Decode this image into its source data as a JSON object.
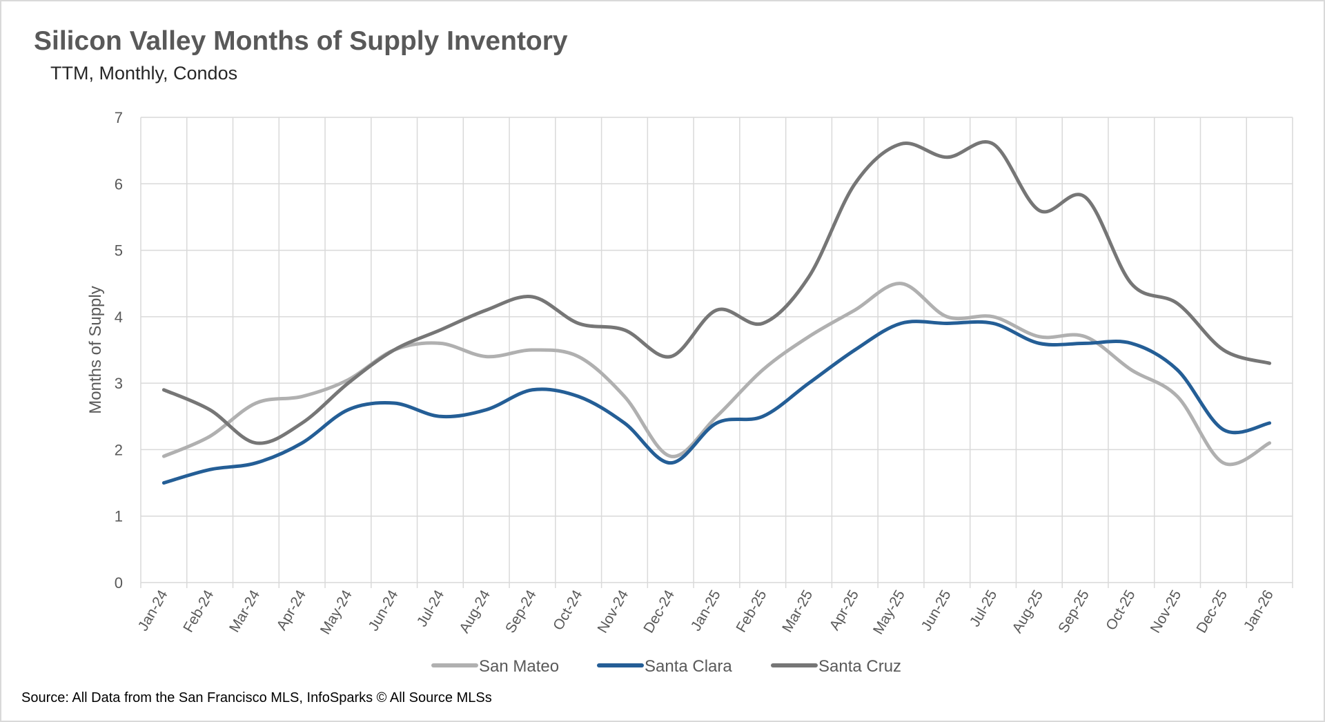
{
  "chart_data": {
    "type": "line",
    "title": "Silicon Valley Months of Supply Inventory",
    "subtitle": "TTM, Monthly, Condos",
    "xlabel": "",
    "ylabel": "Months of Supply",
    "ylim": [
      0,
      7
    ],
    "yticks": [
      0,
      1,
      2,
      3,
      4,
      5,
      6,
      7
    ],
    "grid": true,
    "legend": "bottom",
    "categories": [
      "Jan-24",
      "Feb-24",
      "Mar-24",
      "Apr-24",
      "May-24",
      "Jun-24",
      "Jul-24",
      "Aug-24",
      "Sep-24",
      "Oct-24",
      "Nov-24",
      "Dec-24",
      "Jan-25",
      "Feb-25",
      "Mar-25",
      "Apr-25",
      "May-25",
      "Jun-25",
      "Jul-25",
      "Aug-25",
      "Sep-25",
      "Oct-25",
      "Nov-25",
      "Dec-25",
      "Jan-26"
    ],
    "series": [
      {
        "name": "San Mateo",
        "color": "#b0b0b0",
        "values": [
          1.9,
          2.2,
          2.7,
          2.8,
          3.05,
          3.5,
          3.6,
          3.4,
          3.5,
          3.4,
          2.8,
          1.9,
          2.5,
          3.2,
          3.7,
          4.1,
          4.5,
          4.0,
          4.0,
          3.7,
          3.7,
          3.2,
          2.8,
          1.8,
          2.1
        ]
      },
      {
        "name": "Santa Clara",
        "color": "#245e96",
        "values": [
          1.5,
          1.7,
          1.8,
          2.1,
          2.6,
          2.7,
          2.5,
          2.6,
          2.9,
          2.8,
          2.4,
          1.8,
          2.4,
          2.5,
          3.0,
          3.5,
          3.9,
          3.9,
          3.9,
          3.6,
          3.6,
          3.6,
          3.2,
          2.3,
          2.4
        ]
      },
      {
        "name": "Santa Cruz",
        "color": "#767676",
        "values": [
          2.9,
          2.6,
          2.1,
          2.4,
          3.0,
          3.5,
          3.8,
          4.1,
          4.3,
          3.9,
          3.8,
          3.4,
          4.1,
          3.9,
          4.6,
          6.0,
          6.6,
          6.4,
          6.6,
          5.6,
          5.8,
          4.5,
          4.2,
          3.5,
          3.3
        ]
      }
    ],
    "source": "Source: All Data from the San Francisco MLS, InfoSparks © All Source MLSs"
  }
}
